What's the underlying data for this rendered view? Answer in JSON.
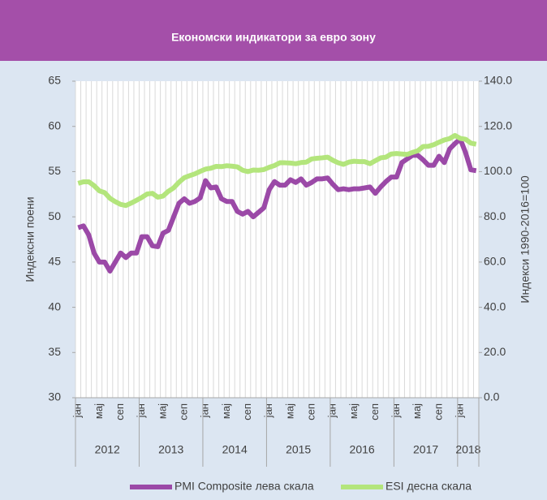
{
  "chart_data": {
    "type": "line",
    "title": "Економски индикатори за евро зону",
    "y_label": "Индексни поени",
    "y2_label": "Индекси 1990-2016=100",
    "categories": [
      "јан",
      null,
      null,
      null,
      "мај",
      null,
      null,
      null,
      "сеп",
      null,
      null,
      null,
      "јан",
      null,
      null,
      null,
      "мај",
      null,
      null,
      null,
      "сеп",
      null,
      null,
      null,
      "јан",
      null,
      null,
      null,
      "мај",
      null,
      null,
      null,
      "сеп",
      null,
      null,
      null,
      "јан",
      null,
      null,
      null,
      "мај",
      null,
      null,
      null,
      "сеп",
      null,
      null,
      null,
      "јан",
      null,
      null,
      null,
      "мај",
      null,
      null,
      null,
      "сеп",
      null,
      null,
      null,
      "јан",
      null,
      null,
      null,
      "мај",
      null,
      null,
      null,
      "сеп",
      null,
      null,
      null,
      "јан",
      null,
      null,
      null
    ],
    "years": [
      "2012",
      "2013",
      "2014",
      "2015",
      "2016",
      "2017",
      "2018"
    ],
    "series": [
      {
        "name": "PMI Composite лева скала",
        "color": "#9b49a7",
        "axis": "y",
        "values": [
          48.8,
          49.0,
          48.0,
          46.0,
          45.0,
          45.0,
          44.0,
          45.0,
          46.0,
          45.5,
          46.0,
          46.0,
          47.8,
          47.8,
          46.8,
          46.7,
          48.2,
          48.5,
          50.0,
          51.5,
          52.0,
          51.5,
          51.7,
          52.1,
          54.0,
          53.2,
          53.3,
          52.0,
          51.7,
          51.7,
          50.6,
          50.3,
          50.6,
          50.0,
          50.5,
          51.0,
          53.0,
          53.9,
          53.5,
          53.5,
          54.1,
          53.8,
          54.2,
          53.5,
          53.8,
          54.2,
          54.2,
          54.3,
          53.6,
          53.0,
          53.1,
          53.0,
          53.1,
          53.1,
          53.2,
          53.3,
          52.6,
          53.3,
          53.9,
          54.4,
          54.4,
          56.0,
          56.4,
          56.8,
          56.8,
          56.3,
          55.7,
          55.7,
          56.7,
          56.0,
          57.5,
          58.1,
          58.6,
          57.1,
          55.2,
          55.1
        ]
      },
      {
        "name": "ESI десна скала",
        "color": "#b3e57c",
        "axis": "y2",
        "values": [
          94.8,
          95.5,
          95.5,
          93.8,
          91.5,
          90.7,
          88.2,
          86.7,
          85.5,
          85.0,
          86.1,
          87.3,
          88.6,
          90.1,
          90.4,
          88.7,
          89.2,
          91.3,
          92.8,
          95.3,
          97.3,
          98.2,
          99.0,
          100.1,
          101.1,
          101.5,
          102.3,
          102.2,
          102.6,
          102.4,
          102.1,
          100.6,
          100.0,
          100.7,
          100.6,
          100.9,
          101.9,
          102.7,
          103.9,
          103.9,
          103.8,
          103.5,
          104.0,
          104.2,
          105.6,
          105.9,
          106.1,
          106.4,
          105.0,
          103.9,
          103.2,
          104.2,
          104.6,
          104.4,
          104.4,
          103.5,
          104.8,
          106.1,
          106.4,
          107.8,
          108.0,
          107.8,
          107.6,
          108.5,
          109.2,
          111.1,
          111.2,
          111.9,
          113.0,
          114.0,
          114.6,
          116.0,
          114.7,
          114.3,
          112.6,
          112.1
        ]
      }
    ],
    "ylim": [
      30,
      65
    ],
    "yticks": [
      30,
      35,
      40,
      45,
      50,
      55,
      60,
      65
    ],
    "y2lim": [
      0,
      140
    ],
    "y2ticks": [
      {
        "value": 0,
        "label": "0.0"
      },
      {
        "value": 20,
        "label": "20.0"
      },
      {
        "value": 40,
        "label": "40.0"
      },
      {
        "value": 60,
        "label": "60.0"
      },
      {
        "value": 80,
        "label": "80.0"
      },
      {
        "value": 100,
        "label": "100.0"
      },
      {
        "value": 120,
        "label": "120.0"
      },
      {
        "value": 140,
        "label": "140.0"
      }
    ],
    "grid": true,
    "legend": "bottom"
  }
}
